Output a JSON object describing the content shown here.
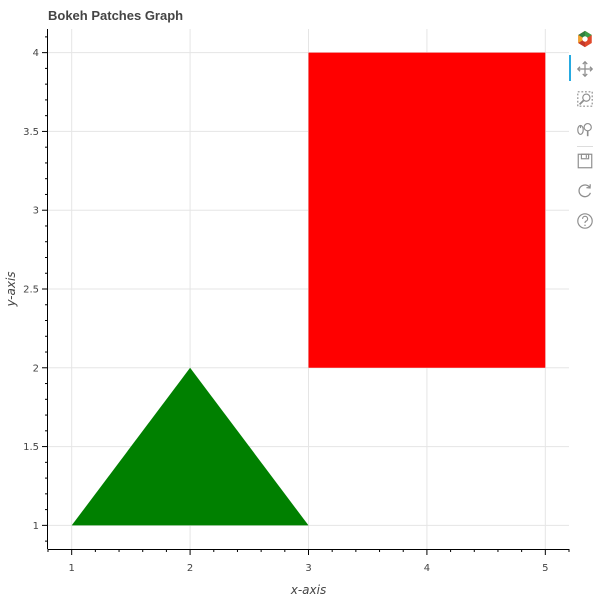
{
  "chart_data": {
    "type": "area",
    "title": "Bokeh Patches Graph",
    "xlabel": "x-axis",
    "ylabel": "y-axis",
    "xlim": [
      0.8,
      5.2
    ],
    "ylim": [
      0.85,
      4.15
    ],
    "grid": true,
    "x_ticks": [
      "1",
      "2",
      "3",
      "4",
      "5"
    ],
    "y_ticks": [
      "1",
      "1.5",
      "2",
      "2.5",
      "3",
      "3.5",
      "4"
    ],
    "patches": [
      {
        "xs": [
          1,
          2,
          3
        ],
        "ys": [
          1,
          2,
          1
        ],
        "color": "#008000"
      },
      {
        "xs": [
          3,
          3,
          5,
          5
        ],
        "ys": [
          2,
          4,
          4,
          2
        ],
        "color": "#ff0000"
      }
    ]
  },
  "toolbar": {
    "tools": [
      "bokeh-logo-icon",
      "pan-icon",
      "box-zoom-icon",
      "wheel-zoom-icon",
      "save-icon",
      "reset-icon",
      "help-icon"
    ]
  }
}
